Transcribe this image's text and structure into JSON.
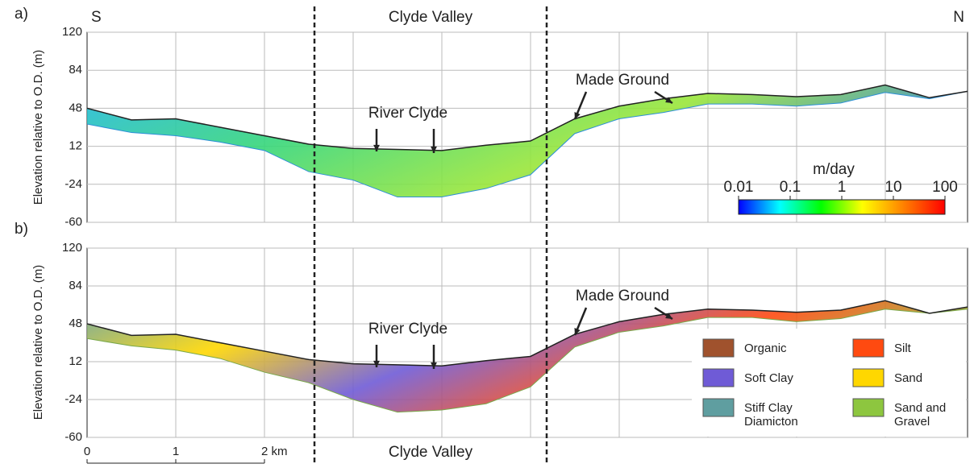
{
  "figure": {
    "top_label": "Clyde Valley",
    "bottom_label": "Clyde Valley",
    "left_label": "S",
    "right_label": "N",
    "scale_bar": {
      "ticks": [
        0,
        1,
        {
          "value": 2,
          "label": "2 km"
        }
      ]
    }
  },
  "chart_data": [
    {
      "type": "section",
      "panel_label": "a)",
      "y_label": "Elevation relative to O.D. (m)",
      "ylim": [
        -60,
        120
      ],
      "yticks": [
        120,
        84,
        48,
        12,
        -24,
        -60
      ],
      "xlim": [
        0,
        9.93
      ],
      "grid": true,
      "annotations": [
        "River Clyde",
        "Made Ground"
      ],
      "x": [
        0,
        0.5,
        1,
        1.5,
        2,
        2.5,
        3,
        3.5,
        4,
        4.5,
        5,
        5.5,
        6,
        6.5,
        7,
        7.5,
        8,
        8.5,
        9,
        9.5,
        9.93
      ],
      "series": [
        {
          "color": "#222222",
          "values": [
            48,
            37,
            38,
            30,
            22,
            14,
            10,
            9,
            8,
            13,
            17,
            38,
            50,
            57,
            62,
            61,
            59,
            61,
            70,
            58,
            64
          ]
        },
        {
          "color": "#2c8fd8",
          "values": [
            33,
            25,
            22,
            16,
            8,
            -12,
            -20,
            -36,
            -36,
            -28,
            -15,
            24,
            38,
            44,
            52,
            52,
            50,
            53,
            63,
            57,
            64
          ]
        }
      ],
      "fill_colors": [
        "#1fb8e0",
        "#36d67a",
        "#9ae63a",
        "#2a7fd0"
      ],
      "colorbar": {
        "title": "m/day",
        "log": true,
        "ticks": [
          0.01,
          0.1,
          1,
          10,
          100
        ],
        "colors": [
          "#0000ff",
          "#00ffff",
          "#00ff00",
          "#ffff00",
          "#ff8000",
          "#ff0000"
        ]
      }
    },
    {
      "type": "section",
      "panel_label": "b)",
      "y_label": "Elevation relative to O.D. (m)",
      "ylim": [
        -60,
        120
      ],
      "yticks": [
        120,
        84,
        48,
        12,
        -24,
        -60
      ],
      "xlim": [
        0,
        9.93
      ],
      "grid": true,
      "annotations": [
        "River Clyde",
        "Made Ground"
      ],
      "x": [
        0,
        0.5,
        1,
        1.5,
        2,
        2.5,
        3,
        3.5,
        4,
        4.5,
        5,
        5.5,
        6,
        6.5,
        7,
        7.5,
        8,
        8.5,
        9,
        9.5,
        9.93
      ],
      "series": [
        {
          "color": "#222222",
          "values": [
            48,
            37,
            38,
            30,
            22,
            14,
            10,
            9,
            8,
            13,
            17,
            38,
            50,
            57,
            62,
            61,
            59,
            61,
            70,
            58,
            64
          ]
        },
        {
          "color": "#7aa84a",
          "values": [
            34,
            27,
            23,
            15,
            2,
            -8,
            -24,
            -36,
            -34,
            -28,
            -12,
            26,
            40,
            46,
            54,
            54,
            50,
            53,
            62,
            58,
            62
          ]
        }
      ],
      "fill_colors": [
        "#5f9ea0",
        "#ffd700",
        "#6f5bd6",
        "#ff4a10",
        "#8dc63f"
      ],
      "legend": [
        {
          "label": "Organic",
          "color": "#a0522d"
        },
        {
          "label": "Silt",
          "color": "#ff4a10"
        },
        {
          "label": "Soft Clay",
          "color": "#6f5bd6"
        },
        {
          "label": "Sand",
          "color": "#ffd700"
        },
        {
          "label": "Stiff Clay Diamicton",
          "color": "#5f9ea0"
        },
        {
          "label": "Sand and Gravel",
          "color": "#8dc63f"
        }
      ]
    }
  ]
}
